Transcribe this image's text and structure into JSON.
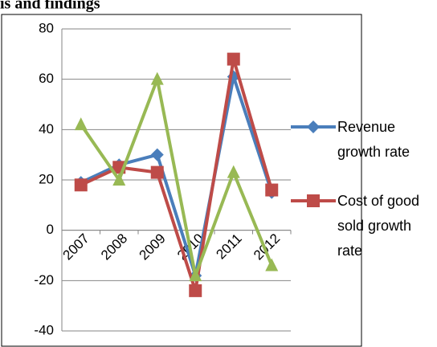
{
  "chart_data": {
    "type": "line",
    "title": "is and findings",
    "categories": [
      "2007",
      "2008",
      "2009",
      "2010",
      "2011",
      "2012"
    ],
    "series": [
      {
        "name": "Revenue growth rate",
        "color": "#4a7ebb",
        "marker": "diamond",
        "values": [
          19,
          26,
          30,
          -18,
          61,
          15
        ]
      },
      {
        "name": "Cost of good sold growth rate",
        "color": "#be4b48",
        "marker": "square",
        "values": [
          18,
          25,
          23,
          -24,
          68,
          16
        ]
      },
      {
        "color": "#98b954",
        "marker": "triangle",
        "values": [
          42,
          20,
          60,
          -18,
          23,
          -14
        ]
      }
    ],
    "ylim": [
      -40,
      80
    ],
    "yticks": [
      -40,
      -20,
      0,
      20,
      40,
      60,
      80
    ],
    "grid": true
  }
}
